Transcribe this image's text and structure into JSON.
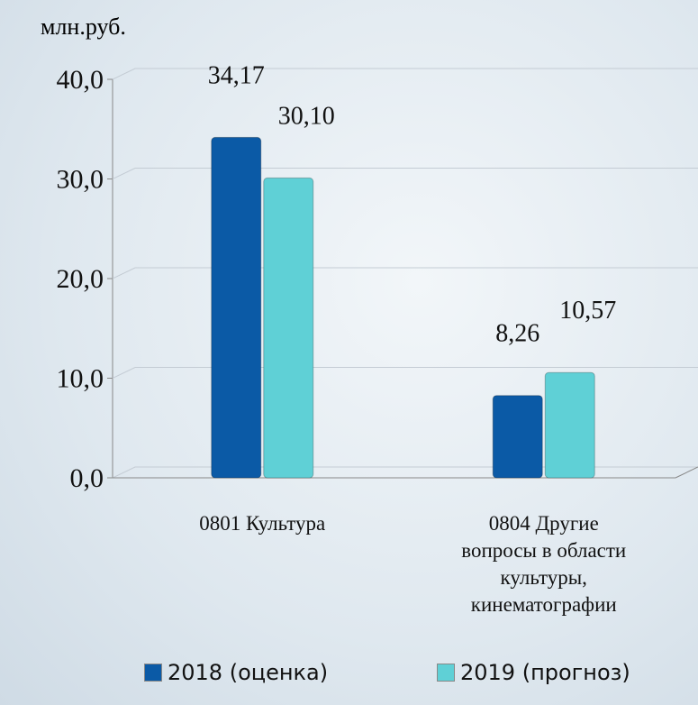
{
  "chart_data": {
    "type": "bar",
    "ylabel": "млн.руб.",
    "categories": [
      "0801 Культура",
      "0804 Другие вопросы в области культуры, кинематографии"
    ],
    "series": [
      {
        "name": "2018 (оценка)",
        "color": "#0b5aa6",
        "values": [
          34.17,
          8.26
        ],
        "value_labels": [
          "34,17",
          "8,26"
        ]
      },
      {
        "name": "2019 (прогноз)",
        "color": "#5fd0d6",
        "values": [
          30.1,
          10.57
        ],
        "value_labels": [
          "30,10",
          "10,57"
        ]
      }
    ],
    "ylim": [
      0,
      40
    ],
    "yticks": [
      {
        "value": 0,
        "label": "0,0"
      },
      {
        "value": 10,
        "label": "10,0"
      },
      {
        "value": 20,
        "label": "20,0"
      },
      {
        "value": 30,
        "label": "30,0"
      },
      {
        "value": 40,
        "label": "40,0"
      }
    ],
    "grid": true,
    "legend": "bottom"
  }
}
